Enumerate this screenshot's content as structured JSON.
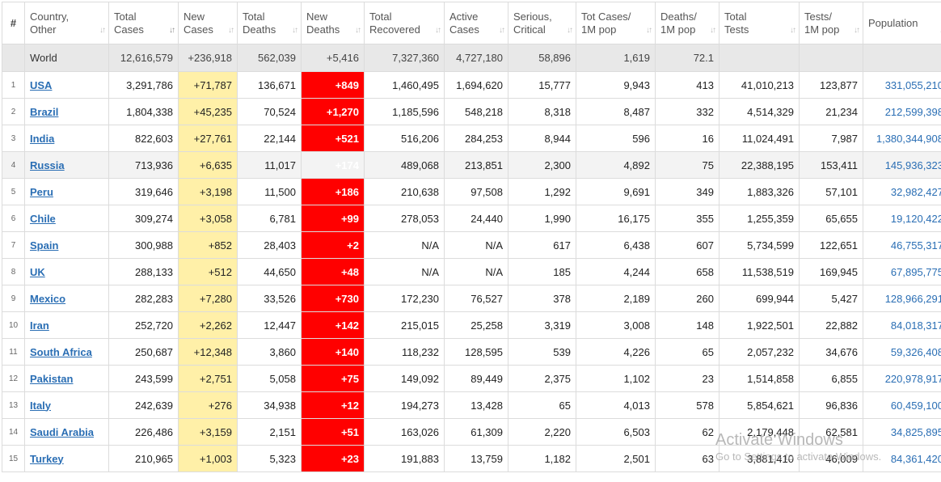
{
  "headers": [
    {
      "label": "#",
      "sort": ""
    },
    {
      "label": "Country,\nOther",
      "sort": "↓↑"
    },
    {
      "label": "Total\nCases",
      "sort": "↓↑",
      "active": true
    },
    {
      "label": "New\nCases",
      "sort": "↓↑"
    },
    {
      "label": "Total\nDeaths",
      "sort": "↓↑"
    },
    {
      "label": "New\nDeaths",
      "sort": "↓↑"
    },
    {
      "label": "Total\nRecovered",
      "sort": "↓↑"
    },
    {
      "label": "Active\nCases",
      "sort": "↓↑"
    },
    {
      "label": "Serious,\nCritical",
      "sort": "↓↑"
    },
    {
      "label": "Tot Cases/\n1M pop",
      "sort": "↓↑"
    },
    {
      "label": "Deaths/\n1M pop",
      "sort": "↓↑"
    },
    {
      "label": "Total\nTests",
      "sort": "↓↑"
    },
    {
      "label": "Tests/\n1M pop",
      "sort": "↓↑"
    },
    {
      "label": "Population",
      "sort": "↓↑"
    }
  ],
  "world": {
    "country": "World",
    "total_cases": "12,616,579",
    "new_cases": "+236,918",
    "total_deaths": "562,039",
    "new_deaths": "+5,416",
    "total_recovered": "7,327,360",
    "active_cases": "4,727,180",
    "serious_critical": "58,896",
    "tot_cases_1m": "1,619",
    "deaths_1m": "72.1",
    "total_tests": "",
    "tests_1m": "",
    "population": ""
  },
  "rows": [
    {
      "idx": "1",
      "country": "USA",
      "total_cases": "3,291,786",
      "new_cases": "+71,787",
      "total_deaths": "136,671",
      "new_deaths": "+849",
      "total_recovered": "1,460,495",
      "active_cases": "1,694,620",
      "serious_critical": "15,777",
      "tot_cases_1m": "9,943",
      "deaths_1m": "413",
      "total_tests": "41,010,213",
      "tests_1m": "123,877",
      "population": "331,055,210"
    },
    {
      "idx": "2",
      "country": "Brazil",
      "total_cases": "1,804,338",
      "new_cases": "+45,235",
      "total_deaths": "70,524",
      "new_deaths": "+1,270",
      "total_recovered": "1,185,596",
      "active_cases": "548,218",
      "serious_critical": "8,318",
      "tot_cases_1m": "8,487",
      "deaths_1m": "332",
      "total_tests": "4,514,329",
      "tests_1m": "21,234",
      "population": "212,599,398"
    },
    {
      "idx": "3",
      "country": "India",
      "total_cases": "822,603",
      "new_cases": "+27,761",
      "total_deaths": "22,144",
      "new_deaths": "+521",
      "total_recovered": "516,206",
      "active_cases": "284,253",
      "serious_critical": "8,944",
      "tot_cases_1m": "596",
      "deaths_1m": "16",
      "total_tests": "11,024,491",
      "tests_1m": "7,987",
      "population": "1,380,344,908"
    },
    {
      "idx": "4",
      "country": "Russia",
      "total_cases": "713,936",
      "new_cases": "+6,635",
      "total_deaths": "11,017",
      "new_deaths": "+174",
      "total_recovered": "489,068",
      "active_cases": "213,851",
      "serious_critical": "2,300",
      "tot_cases_1m": "4,892",
      "deaths_1m": "75",
      "total_tests": "22,388,195",
      "tests_1m": "153,411",
      "population": "145,936,323"
    },
    {
      "idx": "5",
      "country": "Peru",
      "total_cases": "319,646",
      "new_cases": "+3,198",
      "total_deaths": "11,500",
      "new_deaths": "+186",
      "total_recovered": "210,638",
      "active_cases": "97,508",
      "serious_critical": "1,292",
      "tot_cases_1m": "9,691",
      "deaths_1m": "349",
      "total_tests": "1,883,326",
      "tests_1m": "57,101",
      "population": "32,982,427"
    },
    {
      "idx": "6",
      "country": "Chile",
      "total_cases": "309,274",
      "new_cases": "+3,058",
      "total_deaths": "6,781",
      "new_deaths": "+99",
      "total_recovered": "278,053",
      "active_cases": "24,440",
      "serious_critical": "1,990",
      "tot_cases_1m": "16,175",
      "deaths_1m": "355",
      "total_tests": "1,255,359",
      "tests_1m": "65,655",
      "population": "19,120,422"
    },
    {
      "idx": "7",
      "country": "Spain",
      "total_cases": "300,988",
      "new_cases": "+852",
      "total_deaths": "28,403",
      "new_deaths": "+2",
      "total_recovered": "N/A",
      "active_cases": "N/A",
      "serious_critical": "617",
      "tot_cases_1m": "6,438",
      "deaths_1m": "607",
      "total_tests": "5,734,599",
      "tests_1m": "122,651",
      "population": "46,755,317"
    },
    {
      "idx": "8",
      "country": "UK",
      "total_cases": "288,133",
      "new_cases": "+512",
      "total_deaths": "44,650",
      "new_deaths": "+48",
      "total_recovered": "N/A",
      "active_cases": "N/A",
      "serious_critical": "185",
      "tot_cases_1m": "4,244",
      "deaths_1m": "658",
      "total_tests": "11,538,519",
      "tests_1m": "169,945",
      "population": "67,895,775"
    },
    {
      "idx": "9",
      "country": "Mexico",
      "total_cases": "282,283",
      "new_cases": "+7,280",
      "total_deaths": "33,526",
      "new_deaths": "+730",
      "total_recovered": "172,230",
      "active_cases": "76,527",
      "serious_critical": "378",
      "tot_cases_1m": "2,189",
      "deaths_1m": "260",
      "total_tests": "699,944",
      "tests_1m": "5,427",
      "population": "128,966,291"
    },
    {
      "idx": "10",
      "country": "Iran",
      "total_cases": "252,720",
      "new_cases": "+2,262",
      "total_deaths": "12,447",
      "new_deaths": "+142",
      "total_recovered": "215,015",
      "active_cases": "25,258",
      "serious_critical": "3,319",
      "tot_cases_1m": "3,008",
      "deaths_1m": "148",
      "total_tests": "1,922,501",
      "tests_1m": "22,882",
      "population": "84,018,317"
    },
    {
      "idx": "11",
      "country": "South Africa",
      "total_cases": "250,687",
      "new_cases": "+12,348",
      "total_deaths": "3,860",
      "new_deaths": "+140",
      "total_recovered": "118,232",
      "active_cases": "128,595",
      "serious_critical": "539",
      "tot_cases_1m": "4,226",
      "deaths_1m": "65",
      "total_tests": "2,057,232",
      "tests_1m": "34,676",
      "population": "59,326,408"
    },
    {
      "idx": "12",
      "country": "Pakistan",
      "total_cases": "243,599",
      "new_cases": "+2,751",
      "total_deaths": "5,058",
      "new_deaths": "+75",
      "total_recovered": "149,092",
      "active_cases": "89,449",
      "serious_critical": "2,375",
      "tot_cases_1m": "1,102",
      "deaths_1m": "23",
      "total_tests": "1,514,858",
      "tests_1m": "6,855",
      "population": "220,978,917"
    },
    {
      "idx": "13",
      "country": "Italy",
      "total_cases": "242,639",
      "new_cases": "+276",
      "total_deaths": "34,938",
      "new_deaths": "+12",
      "total_recovered": "194,273",
      "active_cases": "13,428",
      "serious_critical": "65",
      "tot_cases_1m": "4,013",
      "deaths_1m": "578",
      "total_tests": "5,854,621",
      "tests_1m": "96,836",
      "population": "60,459,100"
    },
    {
      "idx": "14",
      "country": "Saudi Arabia",
      "total_cases": "226,486",
      "new_cases": "+3,159",
      "total_deaths": "2,151",
      "new_deaths": "+51",
      "total_recovered": "163,026",
      "active_cases": "61,309",
      "serious_critical": "2,220",
      "tot_cases_1m": "6,503",
      "deaths_1m": "62",
      "total_tests": "2,179,448",
      "tests_1m": "62,581",
      "population": "34,825,895"
    },
    {
      "idx": "15",
      "country": "Turkey",
      "total_cases": "210,965",
      "new_cases": "+1,003",
      "total_deaths": "5,323",
      "new_deaths": "+23",
      "total_recovered": "191,883",
      "active_cases": "13,759",
      "serious_critical": "1,182",
      "tot_cases_1m": "2,501",
      "deaths_1m": "63",
      "total_tests": "3,881,410",
      "tests_1m": "46,009",
      "population": "84,361,420"
    }
  ],
  "watermark": {
    "line1": "Activate Windows",
    "line2": "Go to Settings to activate Windows."
  },
  "colors": {
    "new_cases_bg": "#fff0a8",
    "new_deaths_bg": "#ff0000",
    "link": "#2a6eb4",
    "world_row_bg": "#e8e8e8"
  }
}
